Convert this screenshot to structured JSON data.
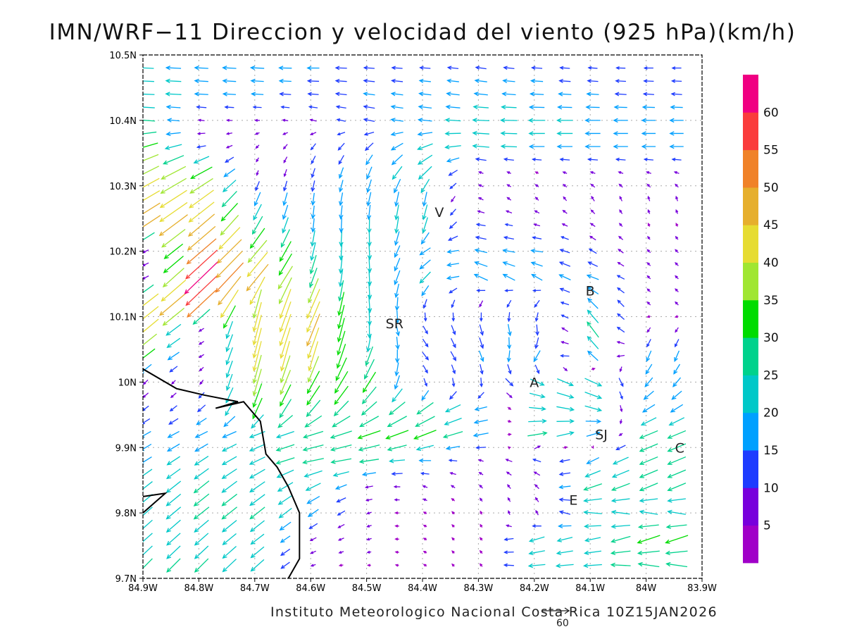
{
  "title": "IMN/WRF−11 Direccion y velocidad del viento (925 hPa)(km/h)",
  "footer": "Instituto Meteorologico Nacional Costa Rica 10Z15JAN2026",
  "reference_vector": {
    "label": "60",
    "speed": 60
  },
  "lon_labels": [
    "84.9W",
    "84.8W",
    "84.7W",
    "84.6W",
    "84.5W",
    "84.4W",
    "84.3W",
    "84.2W",
    "84.1W",
    "84W",
    "83.9W"
  ],
  "lat_labels": [
    "10.5N",
    "10.4N",
    "10.3N",
    "10.2N",
    "10.1N",
    "10N",
    "9.9N",
    "9.8N",
    "9.7N"
  ],
  "cities": [
    {
      "label": "V",
      "lon": -84.37,
      "lat": 10.26
    },
    {
      "label": "B",
      "lon": -84.1,
      "lat": 10.14
    },
    {
      "label": "SR",
      "lon": -84.45,
      "lat": 10.09
    },
    {
      "label": "A",
      "lon": -84.2,
      "lat": 10.0
    },
    {
      "label": "SJ",
      "lon": -84.08,
      "lat": 9.92
    },
    {
      "label": "C",
      "lon": -83.94,
      "lat": 9.9
    },
    {
      "label": "E",
      "lon": -84.13,
      "lat": 9.82
    }
  ],
  "colorbar": {
    "labels": [
      "5",
      "10",
      "15",
      "20",
      "25",
      "30",
      "35",
      "40",
      "45",
      "50",
      "55",
      "60"
    ],
    "colors": [
      "#a000c8",
      "#7800dc",
      "#1e3cff",
      "#00a0ff",
      "#00c8c8",
      "#00d28c",
      "#00dc00",
      "#a0e632",
      "#e6dc32",
      "#e6af2d",
      "#f08228",
      "#fa3c3c",
      "#f00082"
    ]
  },
  "coastline": [
    [
      -84.9,
      10.02
    ],
    [
      -84.84,
      9.99
    ],
    [
      -84.79,
      9.98
    ],
    [
      -84.73,
      9.97
    ],
    [
      -84.77,
      9.96
    ],
    [
      -84.72,
      9.97
    ],
    [
      -84.69,
      9.94
    ],
    [
      -84.68,
      9.89
    ],
    [
      -84.66,
      9.87
    ],
    [
      -84.64,
      9.84
    ],
    [
      -84.62,
      9.8
    ],
    [
      -84.62,
      9.76
    ],
    [
      -84.62,
      9.73
    ],
    [
      -84.64,
      9.7
    ]
  ],
  "coastline_islands": [
    [
      [
        -84.9,
        9.825
      ],
      [
        -84.86,
        9.83
      ],
      [
        -84.9,
        9.8
      ]
    ]
  ],
  "chart_data": {
    "type": "vector-field",
    "title": "IMN/WRF−11 Direccion y velocidad del viento (925 hPa)(km/h)",
    "xlim": [
      -84.9,
      -83.9
    ],
    "ylim": [
      9.7,
      10.5
    ],
    "units": "km/h",
    "note": "Approximate wind field read from the figure: lon, lat, u (east), v (north)",
    "vectors": [
      [
        -84.9,
        10.48,
        -22,
        1
      ],
      [
        -84.8,
        10.48,
        -18,
        1
      ],
      [
        -84.7,
        10.48,
        -18,
        1
      ],
      [
        -84.6,
        10.48,
        -16,
        0
      ],
      [
        -84.5,
        10.48,
        -14,
        1
      ],
      [
        -84.4,
        10.48,
        -14,
        1
      ],
      [
        -84.3,
        10.48,
        -14,
        2
      ],
      [
        -84.2,
        10.48,
        -14,
        1
      ],
      [
        -84.1,
        10.48,
        -12,
        1
      ],
      [
        -84.0,
        10.48,
        -12,
        0
      ],
      [
        -84.9,
        10.44,
        -24,
        1
      ],
      [
        -84.8,
        10.44,
        -18,
        1
      ],
      [
        -84.7,
        10.44,
        -16,
        1
      ],
      [
        -84.6,
        10.44,
        -14,
        1
      ],
      [
        -84.5,
        10.44,
        -15,
        2
      ],
      [
        -84.4,
        10.44,
        -16,
        2
      ],
      [
        -84.3,
        10.44,
        -18,
        2
      ],
      [
        -84.2,
        10.44,
        -18,
        1
      ],
      [
        -84.1,
        10.44,
        -16,
        1
      ],
      [
        -84.0,
        10.44,
        -14,
        1
      ],
      [
        -84.9,
        10.4,
        -26,
        2
      ],
      [
        -84.8,
        10.4,
        -8,
        1
      ],
      [
        -84.7,
        10.4,
        -6,
        0
      ],
      [
        -84.6,
        10.4,
        -8,
        2
      ],
      [
        -84.5,
        10.4,
        -14,
        3
      ],
      [
        -84.4,
        10.4,
        -18,
        2
      ],
      [
        -84.3,
        10.4,
        -22,
        1
      ],
      [
        -84.2,
        10.4,
        -22,
        0
      ],
      [
        -84.1,
        10.4,
        -20,
        0
      ],
      [
        -84.0,
        10.4,
        -18,
        0
      ],
      [
        -84.9,
        10.36,
        -34,
        -10
      ],
      [
        -84.8,
        10.36,
        -12,
        -2
      ],
      [
        -84.7,
        10.36,
        -4,
        -4
      ],
      [
        -84.6,
        10.36,
        -6,
        -8
      ],
      [
        -84.5,
        10.36,
        -10,
        -10
      ],
      [
        -84.4,
        10.36,
        -20,
        -8
      ],
      [
        -84.3,
        10.36,
        -22,
        2
      ],
      [
        -84.2,
        10.36,
        -20,
        0
      ],
      [
        -84.1,
        10.36,
        -20,
        0
      ],
      [
        -84.0,
        10.36,
        -18,
        0
      ],
      [
        -84.9,
        10.32,
        -36,
        -18
      ],
      [
        -84.8,
        10.32,
        -30,
        -16
      ],
      [
        -84.7,
        10.32,
        -2,
        -6
      ],
      [
        -84.6,
        10.32,
        -4,
        -12
      ],
      [
        -84.5,
        10.32,
        -6,
        -16
      ],
      [
        -84.4,
        10.32,
        -18,
        -18
      ],
      [
        -84.3,
        10.32,
        -6,
        2
      ],
      [
        -84.2,
        10.32,
        -4,
        2
      ],
      [
        -84.1,
        10.32,
        -6,
        2
      ],
      [
        -84.0,
        10.32,
        -6,
        2
      ],
      [
        -84.9,
        10.28,
        -38,
        -22
      ],
      [
        -84.8,
        10.28,
        -34,
        -24
      ],
      [
        -84.7,
        10.28,
        -8,
        -18
      ],
      [
        -84.6,
        10.28,
        -2,
        -16
      ],
      [
        -84.5,
        10.28,
        -4,
        -18
      ],
      [
        -84.4,
        10.28,
        -4,
        -20
      ],
      [
        -84.3,
        10.28,
        -6,
        3
      ],
      [
        -84.2,
        10.28,
        -4,
        4
      ],
      [
        -84.1,
        10.28,
        -4,
        6
      ],
      [
        -84.0,
        10.28,
        -2,
        6
      ],
      [
        -84.9,
        10.24,
        -40,
        -26
      ],
      [
        -84.8,
        10.24,
        -36,
        -30
      ],
      [
        -84.7,
        10.24,
        -14,
        -24
      ],
      [
        -84.6,
        10.24,
        -2,
        -18
      ],
      [
        -84.5,
        10.24,
        0,
        -20
      ],
      [
        -84.4,
        10.24,
        -6,
        -22
      ],
      [
        -84.3,
        10.24,
        -12,
        2
      ],
      [
        -84.2,
        10.24,
        -8,
        2
      ],
      [
        -84.1,
        10.24,
        -6,
        4
      ],
      [
        -84.0,
        10.24,
        -2,
        4
      ],
      [
        -84.9,
        10.2,
        -6,
        -2
      ],
      [
        -84.8,
        10.2,
        -40,
        -34
      ],
      [
        -84.7,
        10.2,
        -26,
        -30
      ],
      [
        -84.6,
        10.2,
        -6,
        -24
      ],
      [
        -84.5,
        10.2,
        2,
        -22
      ],
      [
        -84.4,
        10.2,
        -14,
        -10
      ],
      [
        -84.3,
        10.2,
        -16,
        4
      ],
      [
        -84.2,
        10.2,
        -16,
        2
      ],
      [
        -84.1,
        10.2,
        -10,
        6
      ],
      [
        -84.0,
        10.2,
        -4,
        4
      ],
      [
        -84.9,
        10.16,
        -6,
        -2
      ],
      [
        -84.8,
        10.16,
        -46,
        -44
      ],
      [
        -84.7,
        10.16,
        -30,
        -36
      ],
      [
        -84.6,
        10.16,
        -10,
        -26
      ],
      [
        -84.5,
        10.16,
        2,
        -22
      ],
      [
        -84.4,
        10.16,
        -14,
        -16
      ],
      [
        -84.3,
        10.16,
        -18,
        8
      ],
      [
        -84.2,
        10.16,
        -14,
        8
      ],
      [
        -84.1,
        10.16,
        -16,
        6
      ],
      [
        -84.0,
        10.16,
        -4,
        4
      ],
      [
        -84.9,
        10.12,
        -34,
        -26
      ],
      [
        -84.8,
        10.12,
        -40,
        -36
      ],
      [
        -84.7,
        10.12,
        -10,
        -38
      ],
      [
        -84.6,
        10.12,
        -18,
        -40
      ],
      [
        -84.5,
        10.12,
        2,
        -24
      ],
      [
        -84.4,
        10.12,
        -4,
        -12
      ],
      [
        -84.3,
        10.12,
        -4,
        -8
      ],
      [
        -84.2,
        10.12,
        -6,
        -10
      ],
      [
        -84.1,
        10.12,
        -14,
        14
      ],
      [
        -84.0,
        10.12,
        -4,
        4
      ],
      [
        -84.9,
        10.08,
        -36,
        -30
      ],
      [
        -84.8,
        10.08,
        -6,
        -2
      ],
      [
        -84.7,
        10.08,
        -10,
        -40
      ],
      [
        -84.6,
        10.08,
        -18,
        -44
      ],
      [
        -84.5,
        10.08,
        0,
        -22
      ],
      [
        -84.4,
        10.08,
        6,
        -10
      ],
      [
        -84.3,
        10.08,
        4,
        -14
      ],
      [
        -84.2,
        10.08,
        2,
        -16
      ],
      [
        -84.1,
        10.08,
        -16,
        22
      ],
      [
        -84.0,
        10.08,
        -4,
        -6
      ],
      [
        -84.9,
        10.04,
        -26,
        -20
      ],
      [
        -84.8,
        10.04,
        -6,
        -2
      ],
      [
        -84.7,
        10.04,
        -10,
        -40
      ],
      [
        -84.6,
        10.04,
        -12,
        -40
      ],
      [
        -84.5,
        10.04,
        -10,
        -26
      ],
      [
        -84.4,
        10.04,
        8,
        -10
      ],
      [
        -84.3,
        10.04,
        6,
        -14
      ],
      [
        -84.2,
        10.04,
        -8,
        -16
      ],
      [
        -84.1,
        10.04,
        -14,
        14
      ],
      [
        -84.0,
        10.04,
        -6,
        -14
      ],
      [
        -84.9,
        10.0,
        -6,
        -6
      ],
      [
        -84.8,
        10.0,
        -4,
        -4
      ],
      [
        -84.7,
        10.0,
        -10,
        -36
      ],
      [
        -84.6,
        10.0,
        -16,
        -30
      ],
      [
        -84.5,
        10.0,
        -18,
        -28
      ],
      [
        -84.4,
        10.0,
        4,
        -10
      ],
      [
        -84.3,
        10.0,
        0,
        -12
      ],
      [
        -84.2,
        10.0,
        18,
        -8
      ],
      [
        -84.1,
        10.0,
        24,
        -10
      ],
      [
        -84.0,
        10.0,
        -10,
        -12
      ],
      [
        -84.9,
        9.96,
        -8,
        -6
      ],
      [
        -84.8,
        9.96,
        -10,
        -8
      ],
      [
        -84.7,
        9.96,
        -12,
        -28
      ],
      [
        -84.6,
        9.96,
        -18,
        -22
      ],
      [
        -84.5,
        9.96,
        -20,
        -18
      ],
      [
        -84.4,
        9.96,
        -22,
        -16
      ],
      [
        -84.3,
        9.96,
        -18,
        -4
      ],
      [
        -84.2,
        9.96,
        22,
        -2
      ],
      [
        -84.1,
        9.96,
        24,
        -6
      ],
      [
        -84.0,
        9.96,
        -16,
        -10
      ],
      [
        -84.9,
        9.92,
        -14,
        -8
      ],
      [
        -84.8,
        9.92,
        -16,
        -8
      ],
      [
        -84.7,
        9.92,
        -20,
        -8
      ],
      [
        -84.6,
        9.92,
        -26,
        -8
      ],
      [
        -84.5,
        9.92,
        -30,
        -10
      ],
      [
        -84.4,
        9.92,
        -30,
        -12
      ],
      [
        -84.3,
        9.92,
        -22,
        -4
      ],
      [
        -84.2,
        9.92,
        26,
        4
      ],
      [
        -84.1,
        9.92,
        20,
        6
      ],
      [
        -84.0,
        9.92,
        -24,
        -10
      ],
      [
        -84.9,
        9.88,
        -16,
        -10
      ],
      [
        -84.8,
        9.88,
        -18,
        -12
      ],
      [
        -84.7,
        9.88,
        -20,
        -10
      ],
      [
        -84.6,
        9.88,
        -28,
        -6
      ],
      [
        -84.5,
        9.88,
        -26,
        -4
      ],
      [
        -84.4,
        9.88,
        -16,
        0
      ],
      [
        -84.3,
        9.88,
        -6,
        2
      ],
      [
        -84.2,
        9.88,
        -10,
        4
      ],
      [
        -84.1,
        9.88,
        -16,
        -8
      ],
      [
        -84.0,
        9.88,
        -24,
        -10
      ],
      [
        -84.9,
        9.84,
        -18,
        -14
      ],
      [
        -84.8,
        9.84,
        -20,
        -16
      ],
      [
        -84.7,
        9.84,
        -20,
        -14
      ],
      [
        -84.6,
        9.84,
        -20,
        -10
      ],
      [
        -84.5,
        9.84,
        -10,
        -2
      ],
      [
        -84.4,
        9.84,
        -6,
        2
      ],
      [
        -84.3,
        9.84,
        -4,
        4
      ],
      [
        -84.2,
        9.84,
        -4,
        6
      ],
      [
        -84.1,
        9.84,
        -24,
        -8
      ],
      [
        -84.0,
        9.84,
        -24,
        -10
      ],
      [
        -84.9,
        9.8,
        -18,
        -16
      ],
      [
        -84.8,
        9.8,
        -20,
        -16
      ],
      [
        -84.7,
        9.8,
        -20,
        -16
      ],
      [
        -84.6,
        9.8,
        -14,
        -10
      ],
      [
        -84.5,
        9.8,
        -6,
        -2
      ],
      [
        -84.4,
        9.8,
        -4,
        2
      ],
      [
        -84.3,
        9.8,
        -2,
        4
      ],
      [
        -84.2,
        9.8,
        -2,
        6
      ],
      [
        -84.1,
        9.8,
        -24,
        2
      ],
      [
        -84.0,
        9.8,
        -24,
        4
      ],
      [
        -84.9,
        9.76,
        -18,
        -16
      ],
      [
        -84.8,
        9.76,
        -18,
        -16
      ],
      [
        -84.7,
        9.76,
        -18,
        -14
      ],
      [
        -84.6,
        9.76,
        -8,
        -4
      ],
      [
        -84.5,
        9.76,
        -6,
        -2
      ],
      [
        -84.4,
        9.76,
        -4,
        2
      ],
      [
        -84.3,
        9.76,
        -2,
        4
      ],
      [
        -84.2,
        9.76,
        -20,
        -6
      ],
      [
        -84.1,
        9.76,
        -20,
        -4
      ],
      [
        -84.0,
        9.76,
        -30,
        -10
      ],
      [
        -84.9,
        9.72,
        -18,
        -18
      ],
      [
        -84.8,
        9.72,
        -18,
        -18
      ],
      [
        -84.7,
        9.72,
        -18,
        -16
      ],
      [
        -84.6,
        9.72,
        -6,
        -2
      ],
      [
        -84.5,
        9.72,
        -4,
        0
      ],
      [
        -84.4,
        9.72,
        -4,
        2
      ],
      [
        -84.3,
        9.72,
        -2,
        4
      ],
      [
        -84.2,
        9.72,
        -22,
        -2
      ],
      [
        -84.1,
        9.72,
        -24,
        -2
      ],
      [
        -84.0,
        9.72,
        -28,
        4
      ]
    ]
  }
}
